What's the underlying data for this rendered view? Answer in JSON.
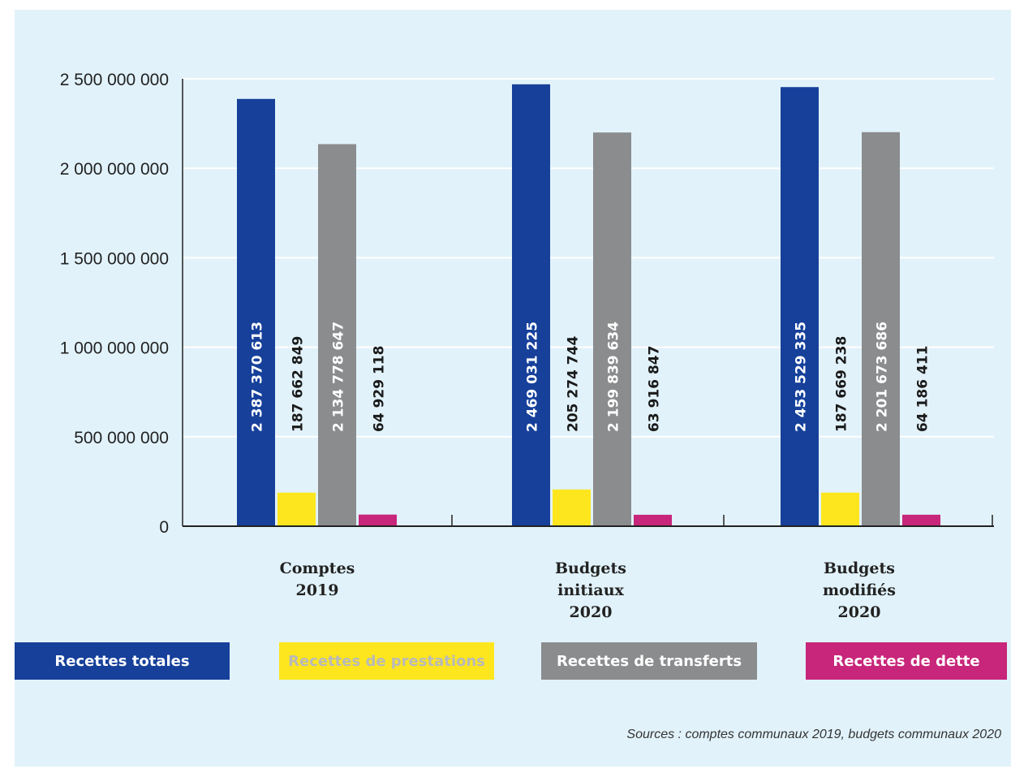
{
  "chart_data": {
    "type": "bar",
    "categories": [
      [
        "Comptes",
        "2019"
      ],
      [
        "Budgets",
        "initiaux",
        "2020"
      ],
      [
        "Budgets",
        "modifiés",
        "2020"
      ]
    ],
    "series": [
      {
        "name": "Recettes totales",
        "color": "#16409a",
        "label_color": "#ffffff",
        "values": [
          2387370613,
          2469031225,
          2453529335
        ],
        "labels": [
          "2 387 370 613",
          "2 469 031 225",
          "2 453 529 335"
        ]
      },
      {
        "name": "Recettes de prestations",
        "color": "#fde61e",
        "label_color": "#1a1a1a",
        "values": [
          187662849,
          205274744,
          187669238
        ],
        "labels": [
          "187 662 849",
          "205 274 744",
          "187 669 238"
        ]
      },
      {
        "name": "Recettes de transferts",
        "color": "#8b8c8e",
        "label_color": "#ffffff",
        "values": [
          2134778647,
          2199839634,
          2201673686
        ],
        "labels": [
          "2 134 778 647",
          "2 199 839 634",
          "2 201 673 686"
        ]
      },
      {
        "name": "Recettes de dette",
        "color": "#c8267a",
        "label_color": "#1a1a1a",
        "values": [
          64929118,
          63916847,
          64186411
        ],
        "labels": [
          "64 929 118",
          "63 916 847",
          "64 186 411"
        ]
      }
    ],
    "yticks": [
      {
        "value": 0,
        "label": "0"
      },
      {
        "value": 500000000,
        "label": "500 000 000"
      },
      {
        "value": 1000000000,
        "label": "1 000 000 000"
      },
      {
        "value": 1500000000,
        "label": "1 500 000 000"
      },
      {
        "value": 2000000000,
        "label": "2 000 000 000"
      },
      {
        "value": 2500000000,
        "label": "2 500 000 000"
      }
    ],
    "ylim": [
      0,
      2500000000
    ],
    "grid": true,
    "legend_position": "bottom",
    "title": "",
    "xlabel": "",
    "ylabel": ""
  },
  "legend": {
    "items": [
      {
        "label": "Recettes totales",
        "bg": "#16409a",
        "fg": "#ffffff"
      },
      {
        "label": "Recettes de prestations",
        "bg": "#fde61e",
        "fg": "#b9b9b9"
      },
      {
        "label": "Recettes de transferts",
        "bg": "#8b8c8e",
        "fg": "#ffffff"
      },
      {
        "label": "Recettes de dette",
        "bg": "#c8267a",
        "fg": "#ffffff"
      }
    ]
  },
  "source_text": "Sources : comptes communaux 2019, budgets communaux 2020"
}
